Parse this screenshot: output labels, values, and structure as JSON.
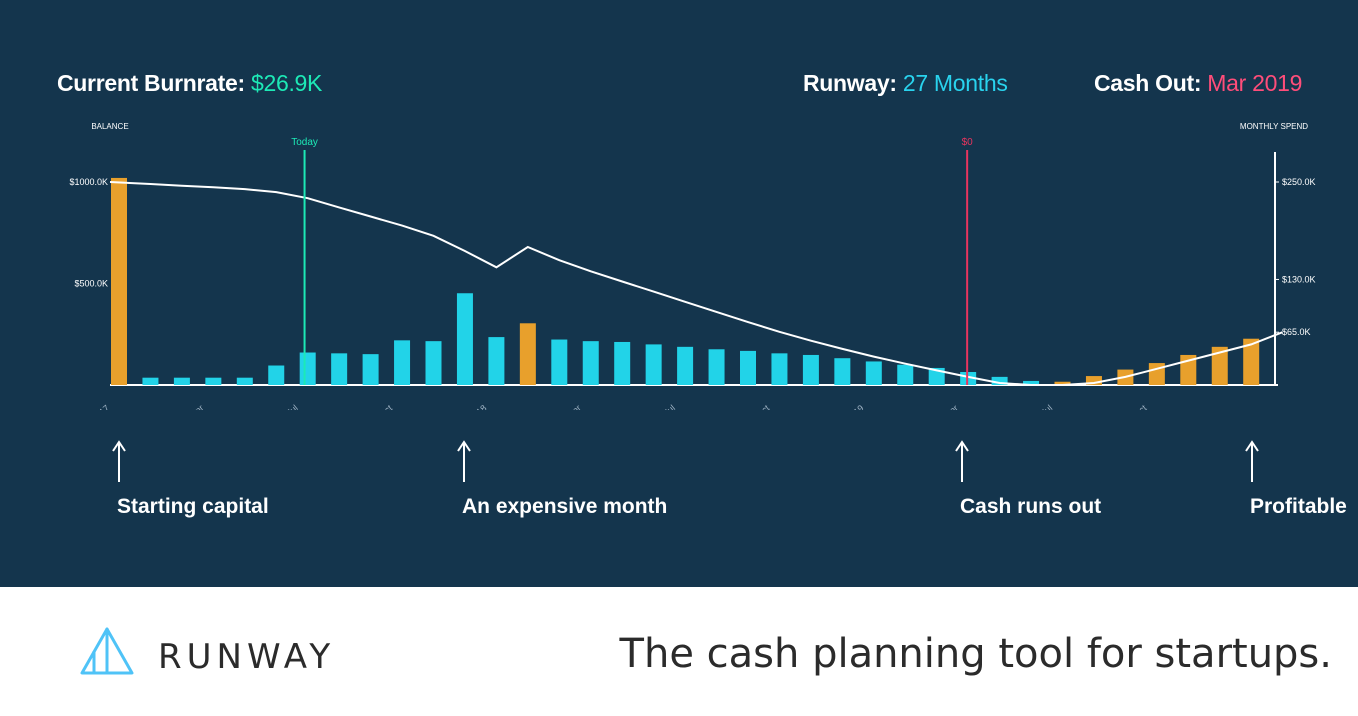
{
  "header": {
    "burn_label": "Current Burnrate:",
    "burn_value": "$26.9K",
    "runway_label": "Runway:",
    "runway_value": "27 Months",
    "cashout_label": "Cash Out:",
    "cashout_value": "Mar 2019"
  },
  "colors": {
    "background": "#14354d",
    "burn": "#1de9b6",
    "runway": "#29d3ee",
    "cashout": "#ff4d7a",
    "bar_spend": "#22d3e8",
    "bar_income": "#e8a02c",
    "today_line": "#1de9b6",
    "zero_line": "#e8345e",
    "balance_line": "#ffffff"
  },
  "chart_data": {
    "type": "bar",
    "left_axis_title": "BALANCE",
    "right_axis_title": "MONTHLY SPEND",
    "left_ticks": [
      "$1000.0K",
      "$500.0K"
    ],
    "right_ticks": [
      "$250.0K",
      "$130.0K",
      "$65.0K"
    ],
    "ylim_left": [
      0,
      1000
    ],
    "ylim_right": [
      0,
      250
    ],
    "x_labels": [
      "2017",
      "Apr",
      "Jul",
      "Oct",
      "2018",
      "Apr",
      "Jul",
      "Oct",
      "2019",
      "Apr",
      "Jul",
      "Oct"
    ],
    "markers": [
      {
        "label": "Today",
        "month_index": 5.9
      },
      {
        "label": "$0",
        "month_index": 27
      }
    ],
    "months": [
      "Jan 2017",
      "Feb 2017",
      "Mar 2017",
      "Apr 2017",
      "May 2017",
      "Jun 2017",
      "Jul 2017",
      "Aug 2017",
      "Sep 2017",
      "Oct 2017",
      "Nov 2017",
      "Dec 2017",
      "Jan 2018",
      "Feb 2018",
      "Mar 2018",
      "Apr 2018",
      "May 2018",
      "Jun 2018",
      "Jul 2018",
      "Aug 2018",
      "Sep 2018",
      "Oct 2018",
      "Nov 2018",
      "Dec 2018",
      "Jan 2019",
      "Feb 2019",
      "Mar 2019",
      "Apr 2019",
      "May 2019",
      "Jun 2019",
      "Jul 2019",
      "Aug 2019",
      "Sep 2019",
      "Oct 2019",
      "Nov 2019",
      "Dec 2019",
      "Jan 2020",
      "Feb 2020"
    ],
    "series": [
      {
        "kind": "spend",
        "values": [
          0,
          9,
          9,
          9,
          9,
          24,
          40,
          39,
          38,
          55,
          54,
          113,
          59,
          0,
          56,
          54,
          53,
          50,
          47,
          44,
          42,
          39,
          37,
          33,
          29,
          25,
          21,
          16,
          10,
          5,
          0,
          0,
          0,
          0,
          0,
          0,
          0,
          0
        ]
      },
      {
        "kind": "income",
        "values": [
          255,
          0,
          0,
          0,
          0,
          0,
          0,
          0,
          0,
          0,
          0,
          0,
          0,
          76,
          0,
          0,
          0,
          0,
          0,
          0,
          0,
          0,
          0,
          0,
          0,
          0,
          0,
          0,
          0,
          0,
          4,
          11,
          19,
          27,
          37,
          47,
          57,
          0
        ]
      },
      {
        "kind": "balance",
        "values": [
          1000,
          990,
          982,
          974,
          965,
          950,
          920,
          875,
          830,
          785,
          735,
          660,
          580,
          680,
          615,
          560,
          510,
          460,
          410,
          360,
          310,
          262,
          218,
          178,
          140,
          105,
          72,
          40,
          10,
          0,
          0,
          10,
          40,
          80,
          120,
          160,
          200,
          260
        ]
      }
    ]
  },
  "annotations": [
    {
      "label": "Starting capital",
      "month_index": 0
    },
    {
      "label": "An expensive month",
      "month_index": 11
    },
    {
      "label": "Cash runs out",
      "month_index": 27
    },
    {
      "label": "Profitable",
      "month_index": 36
    }
  ],
  "footer": {
    "brand": "RUNWAY",
    "tagline": "The cash planning tool for startups."
  }
}
